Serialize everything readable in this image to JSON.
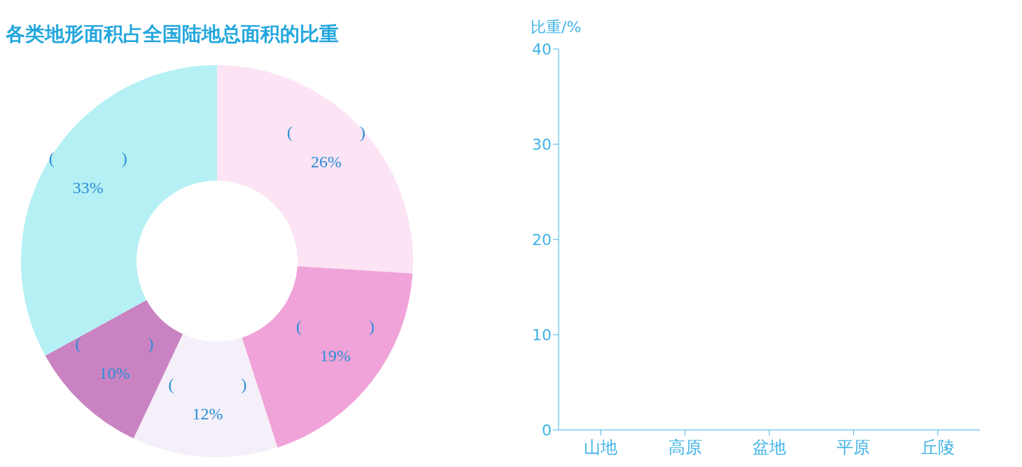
{
  "chart_data": [
    {
      "type": "donut",
      "title": "各类地形面积占全国陆地总面积的比重",
      "categories": [
        null,
        null,
        null,
        null,
        null
      ],
      "values": [
        26,
        19,
        12,
        10,
        33
      ],
      "colors": [
        "#fce4f4",
        "#f0a3d8",
        "#f4eff8",
        "#c983c2",
        "#b5f0f4"
      ],
      "value_labels": [
        "26%",
        "19%",
        "12%",
        "10%",
        "33%"
      ],
      "annotations": [
        "(　　　　)",
        "(　　　　)",
        "(　　　　)",
        "(　　　　)",
        "(　　　　)"
      ]
    },
    {
      "type": "bar",
      "ylabel": "比重/%",
      "categories": [
        "山地",
        "高原",
        "盆地",
        "平原",
        "丘陵"
      ],
      "values": [
        null,
        null,
        null,
        null,
        null
      ],
      "ylim": [
        0,
        40
      ],
      "yticks": [
        0,
        10,
        20,
        30,
        40
      ],
      "grid": false
    }
  ]
}
